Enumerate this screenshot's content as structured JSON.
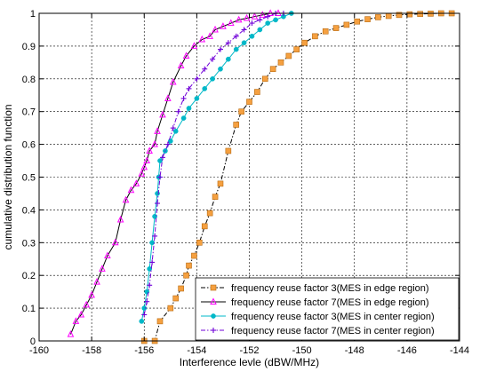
{
  "chart_data": {
    "type": "line",
    "xlabel": "Interference levle (dBW/MHz)",
    "ylabel": "cumulative distribution function",
    "xlim": [
      -160,
      -144
    ],
    "ylim": [
      0,
      1
    ],
    "xticks": [
      -160,
      -158,
      -156,
      -154,
      -152,
      -150,
      -148,
      -146,
      -144
    ],
    "xtick_labels": [
      "-160",
      "-158",
      "-156",
      "-154",
      "-152",
      "-150",
      "-148",
      "-146",
      "-144"
    ],
    "yticks": [
      0,
      0.1,
      0.2,
      0.3,
      0.4,
      0.5,
      0.6,
      0.7,
      0.8,
      0.9,
      1
    ],
    "ytick_labels": [
      "0",
      "0.1",
      "0.2",
      "0.3",
      "0.4",
      "0.5",
      "0.6",
      "0.7",
      "0.8",
      "0.9",
      "1"
    ],
    "grid": true,
    "legend_position": "bottom-right",
    "series": [
      {
        "name": "frequency reuse factor 3(MES in edge region)",
        "color": "#f5a040",
        "line_color": "#000000",
        "marker": "square",
        "x": [
          -156.0,
          -155.6,
          -155.4,
          -155.0,
          -154.8,
          -154.6,
          -154.4,
          -154.3,
          -154.1,
          -153.9,
          -153.7,
          -153.5,
          -153.3,
          -153.1,
          -152.8,
          -152.5,
          -152.3,
          -152.0,
          -151.7,
          -151.4,
          -151.1,
          -150.8,
          -150.5,
          -150.2,
          -149.9,
          -149.5,
          -149.1,
          -148.7,
          -148.3,
          -147.9,
          -147.5,
          -147.1,
          -146.7,
          -146.3,
          -145.9,
          -145.5,
          -145.1,
          -144.7,
          -144.3
        ],
        "y": [
          0.0,
          0.0,
          0.06,
          0.1,
          0.13,
          0.16,
          0.2,
          0.23,
          0.26,
          0.3,
          0.35,
          0.39,
          0.44,
          0.48,
          0.58,
          0.66,
          0.7,
          0.73,
          0.76,
          0.8,
          0.83,
          0.85,
          0.87,
          0.89,
          0.91,
          0.93,
          0.945,
          0.955,
          0.965,
          0.975,
          0.982,
          0.988,
          0.992,
          0.995,
          0.997,
          0.998,
          0.999,
          1.0,
          1.0
        ],
        "line_dash": "dashdot"
      },
      {
        "name": "frequency reuse factor 7(MES in edge region)",
        "color": "#ff00ff",
        "line_color": "#000000",
        "marker": "triangle",
        "x": [
          -158.8,
          -158.6,
          -158.4,
          -158.2,
          -158.0,
          -157.8,
          -157.6,
          -157.4,
          -157.1,
          -156.9,
          -156.7,
          -156.5,
          -156.3,
          -156.1,
          -156.0,
          -155.9,
          -155.8,
          -155.6,
          -155.5,
          -155.3,
          -155.1,
          -154.9,
          -154.6,
          -154.4,
          -154.1,
          -153.8,
          -153.5,
          -153.3,
          -153.0,
          -152.7,
          -152.4,
          -152.1,
          -151.8,
          -151.5,
          -151.2,
          -150.9
        ],
        "y": [
          0.02,
          0.06,
          0.08,
          0.11,
          0.14,
          0.18,
          0.22,
          0.26,
          0.3,
          0.37,
          0.43,
          0.46,
          0.48,
          0.51,
          0.53,
          0.55,
          0.58,
          0.6,
          0.64,
          0.69,
          0.74,
          0.79,
          0.84,
          0.87,
          0.9,
          0.92,
          0.93,
          0.95,
          0.96,
          0.97,
          0.98,
          0.985,
          0.99,
          0.995,
          1.0,
          1.0
        ],
        "line_dash": "solid"
      },
      {
        "name": "frequency reuse factor 3(MES in center region)",
        "color": "#00b8c8",
        "line_color": "#00b8c8",
        "marker": "circle",
        "x": [
          -156.1,
          -156.0,
          -155.9,
          -155.8,
          -155.7,
          -155.6,
          -155.5,
          -155.45,
          -155.4,
          -155.2,
          -155.0,
          -154.8,
          -154.5,
          -154.3,
          -154.0,
          -153.7,
          -153.4,
          -153.1,
          -152.8,
          -152.5,
          -152.2,
          -151.9,
          -151.6,
          -151.3,
          -151.0,
          -150.7,
          -150.4
        ],
        "y": [
          0.06,
          0.1,
          0.15,
          0.22,
          0.3,
          0.38,
          0.45,
          0.5,
          0.55,
          0.58,
          0.61,
          0.64,
          0.68,
          0.71,
          0.74,
          0.77,
          0.8,
          0.83,
          0.86,
          0.89,
          0.91,
          0.93,
          0.95,
          0.97,
          0.98,
          0.99,
          1.0
        ],
        "line_dash": "solid"
      },
      {
        "name": "frequency reuse factor 7(MES in center region)",
        "color": "#7000d8",
        "line_color": "#7000d8",
        "marker": "plus",
        "x": [
          -156.0,
          -155.9,
          -155.8,
          -155.7,
          -155.6,
          -155.5,
          -155.4,
          -155.3,
          -155.1,
          -154.9,
          -154.7,
          -154.5,
          -154.3,
          -154.0,
          -153.7,
          -153.4,
          -153.1,
          -152.8,
          -152.5,
          -152.2,
          -151.9,
          -151.6,
          -151.3,
          -151.0,
          -150.7
        ],
        "y": [
          0.08,
          0.12,
          0.17,
          0.24,
          0.32,
          0.42,
          0.5,
          0.56,
          0.6,
          0.65,
          0.7,
          0.74,
          0.77,
          0.8,
          0.83,
          0.86,
          0.89,
          0.91,
          0.93,
          0.95,
          0.97,
          0.98,
          0.99,
          1.0,
          1.0
        ],
        "line_dash": "dashdot"
      }
    ]
  }
}
